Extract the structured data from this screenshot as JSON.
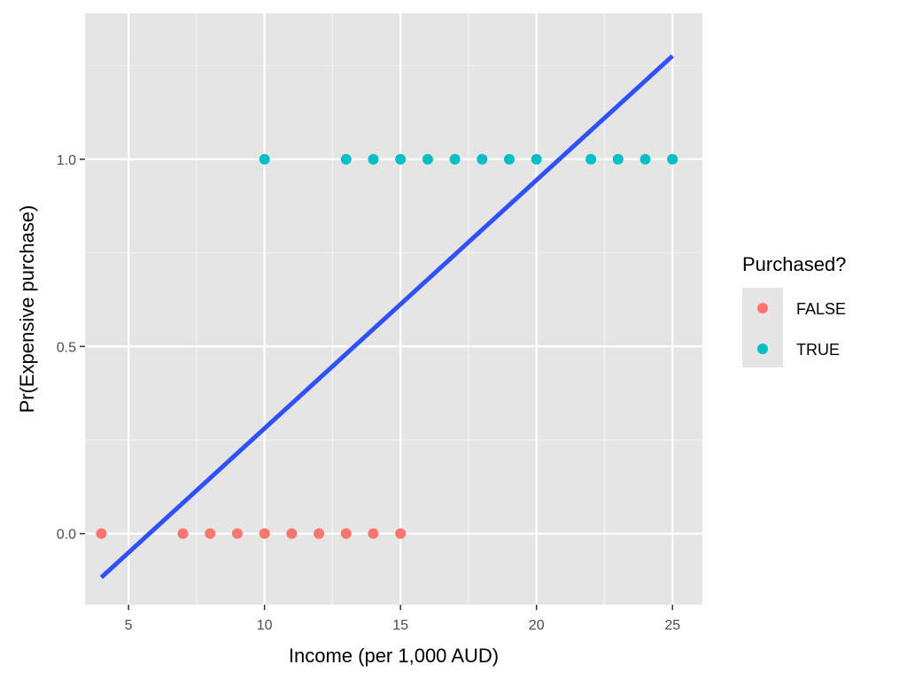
{
  "chart_data": {
    "type": "scatter",
    "xlabel": "Income (per 1,000 AUD)",
    "ylabel": "Pr(Expensive purchase)",
    "xlim": [
      3.4,
      26.1
    ],
    "ylim": [
      -0.19,
      1.39
    ],
    "x_ticks": [
      5,
      10,
      15,
      20,
      25
    ],
    "y_ticks": [
      0.0,
      0.5,
      1.0
    ],
    "x_tick_labels": [
      "5",
      "10",
      "15",
      "20",
      "25"
    ],
    "y_tick_labels": [
      "0.0",
      "0.5",
      "1.0"
    ],
    "grid": true,
    "legend": {
      "title": "Purchased?",
      "position": "right",
      "entries": [
        {
          "label": "FALSE",
          "color": "#F8766D"
        },
        {
          "label": "TRUE",
          "color": "#00BFC4"
        }
      ]
    },
    "series": [
      {
        "name": "FALSE",
        "color": "#F8766D",
        "x": [
          4,
          7,
          8,
          9,
          10,
          11,
          12,
          13,
          14,
          15
        ],
        "y": [
          0,
          0,
          0,
          0,
          0,
          0,
          0,
          0,
          0,
          0
        ]
      },
      {
        "name": "TRUE",
        "color": "#00BFC4",
        "x": [
          10,
          13,
          14,
          15,
          16,
          17,
          18,
          19,
          20,
          22,
          23,
          24,
          25
        ],
        "y": [
          1,
          1,
          1,
          1,
          1,
          1,
          1,
          1,
          1,
          1,
          1,
          1,
          1
        ]
      }
    ],
    "fit_line": {
      "color": "#3050F8",
      "x": [
        4,
        25
      ],
      "y": [
        -0.117,
        1.276
      ]
    },
    "colors": {
      "panel_background": "#E5E5E5",
      "grid_major": "#FFFFFF",
      "grid_minor": "#F2F2F2"
    }
  }
}
